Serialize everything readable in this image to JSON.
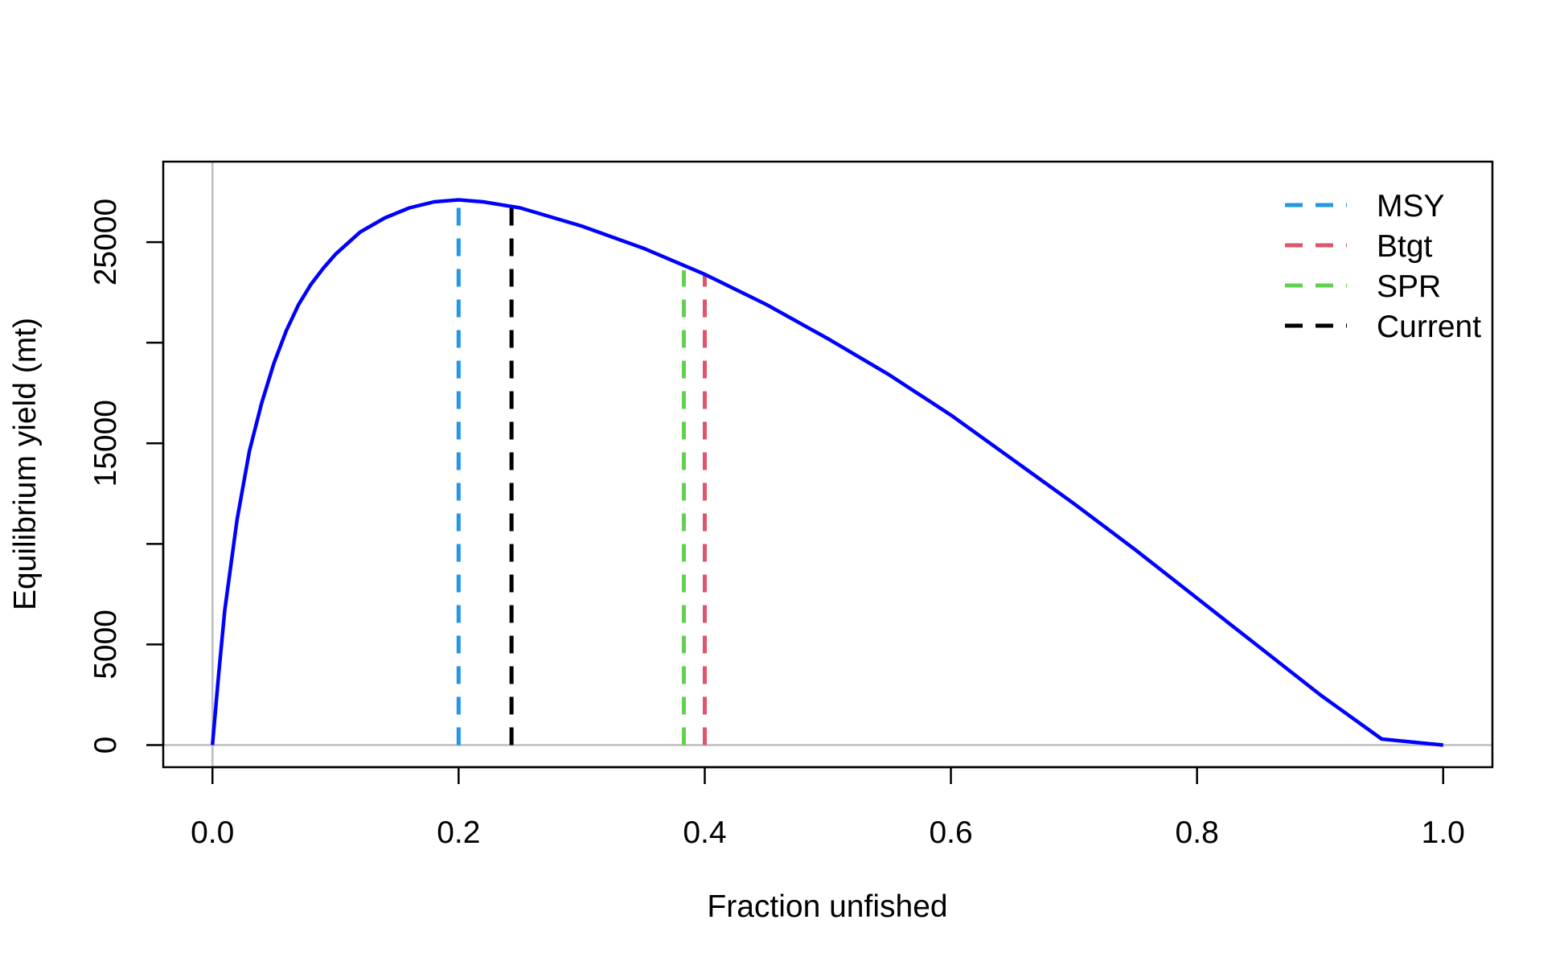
{
  "chart_data": {
    "type": "line",
    "xlabel": "Fraction unfished",
    "ylabel": "Equilibrium yield (mt)",
    "xlim": [
      -0.04,
      1.04
    ],
    "ylim": [
      -1100,
      29000
    ],
    "x_ticks": [
      {
        "value": 0.0,
        "label": "0.0"
      },
      {
        "value": 0.2,
        "label": "0.2"
      },
      {
        "value": 0.4,
        "label": "0.4"
      },
      {
        "value": 0.6,
        "label": "0.6"
      },
      {
        "value": 0.8,
        "label": "0.8"
      },
      {
        "value": 1.0,
        "label": "1.0"
      }
    ],
    "y_ticks": [
      {
        "value": 0,
        "label": "0"
      },
      {
        "value": 5000,
        "label": "5000"
      },
      {
        "value": 10000,
        "label": ""
      },
      {
        "value": 15000,
        "label": "15000"
      },
      {
        "value": 20000,
        "label": ""
      },
      {
        "value": 25000,
        "label": "25000"
      }
    ],
    "series": [
      {
        "color": "#0000ff",
        "x": [
          0.0,
          0.005,
          0.01,
          0.02,
          0.03,
          0.04,
          0.05,
          0.06,
          0.07,
          0.08,
          0.09,
          0.1,
          0.12,
          0.14,
          0.16,
          0.18,
          0.2,
          0.22,
          0.25,
          0.3,
          0.35,
          0.4,
          0.45,
          0.5,
          0.55,
          0.6,
          0.65,
          0.7,
          0.75,
          0.8,
          0.85,
          0.9,
          0.95,
          1.0
        ],
        "y": [
          0,
          3500,
          6700,
          11200,
          14600,
          17000,
          19000,
          20600,
          21900,
          22900,
          23700,
          24400,
          25500,
          26200,
          26700,
          27000,
          27100,
          27000,
          26700,
          25800,
          24700,
          23400,
          21900,
          20200,
          18400,
          16400,
          14200,
          12000,
          9700,
          7300,
          4900,
          2500,
          300,
          0
        ]
      }
    ],
    "reference_lines": [
      {
        "name": "MSY",
        "x": 0.2,
        "y_top": 27100,
        "color": "#2297e6"
      },
      {
        "name": "Btgt",
        "x": 0.4,
        "y_top": 23400,
        "color": "#df536b"
      },
      {
        "name": "SPR",
        "x": 0.383,
        "y_top": 23600,
        "color": "#61d04f"
      },
      {
        "name": "Current",
        "x": 0.243,
        "y_top": 26800,
        "color": "#000000"
      }
    ],
    "legend": {
      "position": "top-right",
      "entries": [
        {
          "label": "MSY",
          "color": "#2297e6"
        },
        {
          "label": "Btgt",
          "color": "#df536b"
        },
        {
          "label": "SPR",
          "color": "#61d04f"
        },
        {
          "label": "Current",
          "color": "#000000"
        }
      ]
    },
    "zero_lines": {
      "x": 0,
      "y": 0,
      "color": "#bebebe"
    },
    "grid": false
  }
}
